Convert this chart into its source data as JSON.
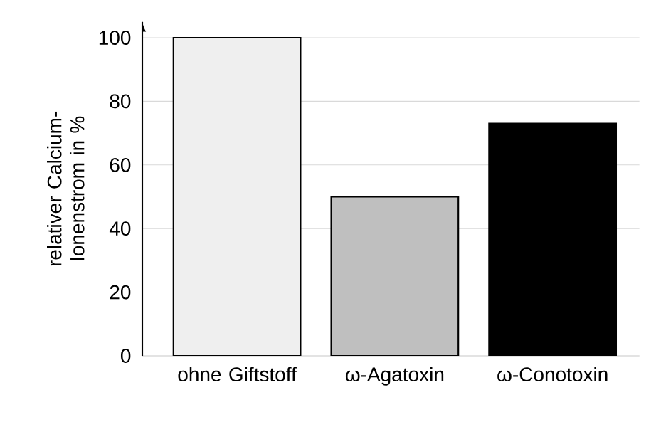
{
  "chart_data": {
    "type": "bar",
    "ylabel": "relativer Calcium-Ionenstrom in %",
    "categories": [
      "ohne Giftstoff",
      "ω-Agatoxin",
      "ω-Conotoxin"
    ],
    "values": [
      100,
      50,
      73
    ],
    "colors": [
      "#efefef",
      "#bfbfbf",
      "#000000"
    ],
    "ylim": [
      0,
      105
    ],
    "yticks": [
      0,
      20,
      40,
      60,
      80,
      100
    ],
    "grid": "y"
  }
}
